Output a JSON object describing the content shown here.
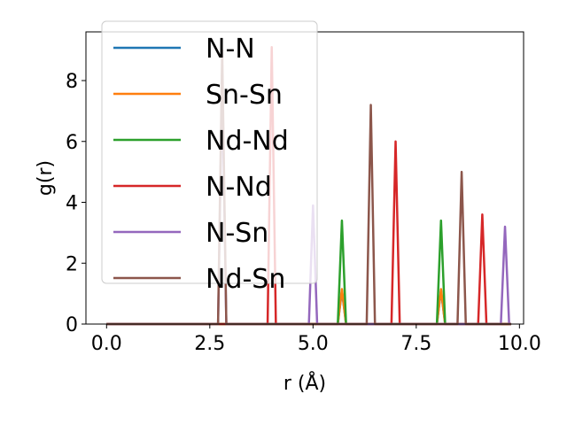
{
  "chart_data": {
    "type": "line",
    "xlabel": "r (Å)",
    "ylabel": "g(r)",
    "xlim": [
      -0.5,
      10.1
    ],
    "ylim": [
      0,
      9.6
    ],
    "xticks": [
      0.0,
      2.5,
      5.0,
      7.5,
      10.0
    ],
    "xtick_labels": [
      "0.0",
      "2.5",
      "5.0",
      "7.5",
      "10.0"
    ],
    "yticks": [
      0,
      2,
      4,
      6,
      8
    ],
    "ytick_labels": [
      "0",
      "2",
      "4",
      "6",
      "8"
    ],
    "grid": false,
    "legend_position": "top-left",
    "peak_half_width": 0.1,
    "series": [
      {
        "name": "N-N",
        "color": "#1f77b4",
        "peaks": [
          [
            5.7,
            1.1
          ],
          [
            8.1,
            1.1
          ]
        ]
      },
      {
        "name": "Sn-Sn",
        "color": "#ff7f0e",
        "peaks": [
          [
            5.7,
            1.15
          ],
          [
            8.1,
            1.15
          ]
        ]
      },
      {
        "name": "Nd-Nd",
        "color": "#2ca02c",
        "peaks": [
          [
            5.7,
            3.4
          ],
          [
            8.1,
            3.4
          ]
        ]
      },
      {
        "name": "N-Nd",
        "color": "#d62728",
        "peaks": [
          [
            4.0,
            9.1
          ],
          [
            7.0,
            6.0
          ],
          [
            9.1,
            3.6
          ]
        ]
      },
      {
        "name": "N-Sn",
        "color": "#9467bd",
        "peaks": [
          [
            2.8,
            8.0
          ],
          [
            5.0,
            3.9
          ],
          [
            9.65,
            3.2
          ]
        ]
      },
      {
        "name": "Nd-Sn",
        "color": "#8c564b",
        "peaks": [
          [
            2.8,
            9.0
          ],
          [
            6.4,
            7.2
          ],
          [
            8.6,
            5.0
          ]
        ]
      }
    ]
  }
}
